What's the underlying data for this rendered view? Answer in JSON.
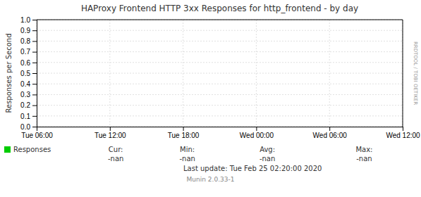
{
  "chart_data": {
    "type": "line",
    "title": "HAProxy Frontend HTTP 3xx Responses for http_frontend - by day",
    "y_label": "Responses per Second",
    "categories": [
      "Tue 06:00",
      "Tue 12:00",
      "Tue 18:00",
      "Wed 00:00",
      "Wed 06:00",
      "Wed 12:00"
    ],
    "series": [
      {
        "name": "Responses",
        "color": "#00cc00",
        "values": [
          null,
          null,
          null,
          null,
          null,
          null
        ]
      }
    ],
    "ylim": [
      0.0,
      1.0
    ],
    "yticks": [
      {
        "value": 0.0,
        "label": "0.0"
      },
      0.1,
      0.2,
      0.3,
      0.4,
      0.5,
      0.6,
      0.7,
      0.8,
      0.9,
      {
        "value": 1.0,
        "label": "1.0"
      }
    ],
    "grid": true,
    "legend": "bottom",
    "annotations": [
      "Cur:",
      "-nan",
      "Min:",
      "-nan",
      "Avg:",
      "-nan",
      "Max:",
      "-nan",
      "Last update:  Tue Feb 25 02:20:00 2020",
      "Munin 2.0.33-1",
      "RRDTOOL / TOBI OETIKER"
    ]
  }
}
